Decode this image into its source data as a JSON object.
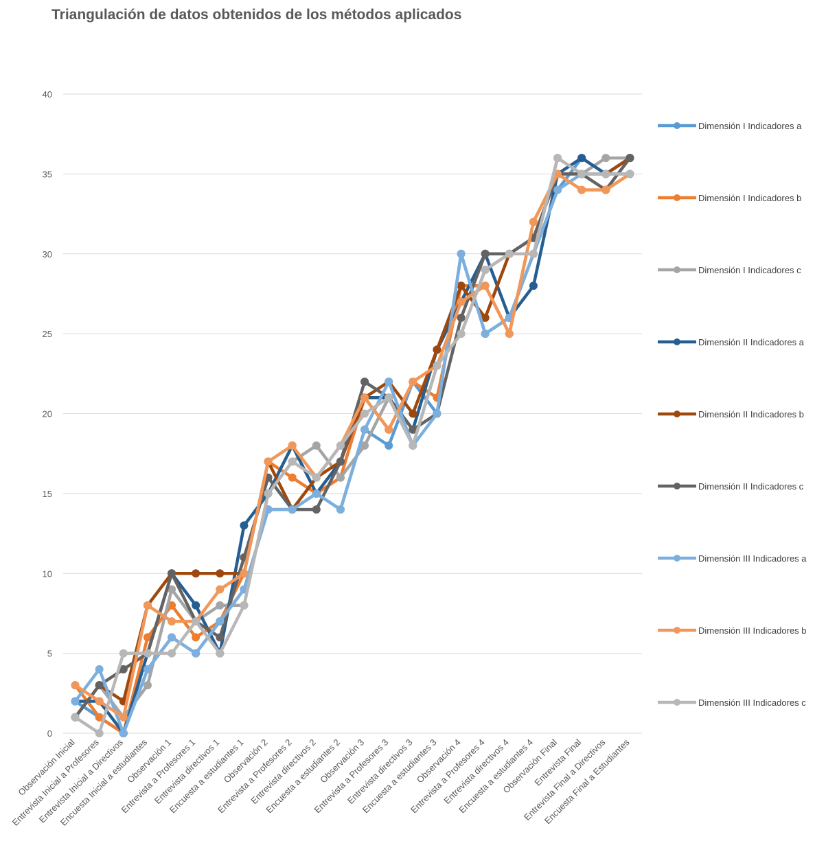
{
  "chart_data": {
    "type": "line",
    "title": "Triangulación de datos obtenidos de los métodos aplicados",
    "categories": [
      "Observación Inicial",
      "Entrevista Inicial a Profesores",
      "Entrevista Inicial a Directivos",
      "Encuesta Inicial a estudiantes",
      "Observación 1",
      "Entrevista a Profesores 1",
      "Entrevista directivos 1",
      "Encuesta a estudiantes 1",
      "Observación 2",
      "Entrevista a Profesores 2",
      "Entrevista directivos 2",
      "Encuesta a estudiantes 2",
      "Observación 3",
      "Entrevista a Profesores 3",
      "Entrevista directivos 3",
      "Encuesta a estudiantes 3",
      "Observación 4",
      "Entrevista a Profesores 4",
      "Entrevista directivos 4",
      "Encuesta a estudiantes 4",
      "Observación Final",
      "Entrevista Final",
      "Entrevista Final a Directivos",
      "Encuesta Final a Estudiantes"
    ],
    "series": [
      {
        "name": "Dimensión I Indicadores a",
        "color": "#5b9bd5",
        "values": [
          2,
          1,
          0,
          4,
          6,
          5,
          7,
          9,
          14,
          14,
          15,
          14,
          19,
          18,
          22,
          20,
          30,
          25,
          26,
          30,
          34,
          36,
          35,
          35
        ]
      },
      {
        "name": "Dimensión I Indicadores b",
        "color": "#ed7d31",
        "values": [
          3,
          1,
          0,
          6,
          8,
          6,
          7,
          10,
          17,
          16,
          15,
          16,
          21,
          19,
          22,
          21,
          28,
          28,
          25,
          32,
          35,
          34,
          34,
          35
        ]
      },
      {
        "name": "Dimensión I Indicadores c",
        "color": "#a5a5a5",
        "values": [
          1,
          3,
          1,
          3,
          9,
          7,
          8,
          8,
          15,
          17,
          18,
          16,
          18,
          21,
          18,
          23,
          25,
          29,
          30,
          30,
          36,
          35,
          36,
          36
        ]
      },
      {
        "name": "Dimensión II Indicadores a",
        "color": "#255e91",
        "values": [
          2,
          2,
          0,
          5,
          10,
          8,
          5,
          13,
          15,
          18,
          15,
          17,
          21,
          21,
          19,
          24,
          27,
          30,
          26,
          28,
          35,
          36,
          35,
          36
        ]
      },
      {
        "name": "Dimensión II Indicadores b",
        "color": "#9e480e",
        "values": [
          1,
          3,
          2,
          8,
          10,
          10,
          10,
          10,
          17,
          14,
          16,
          17,
          21,
          22,
          20,
          24,
          28,
          26,
          30,
          31,
          35,
          35,
          35,
          36
        ]
      },
      {
        "name": "Dimensión II Indicadores c",
        "color": "#636363",
        "values": [
          1,
          3,
          4,
          5,
          10,
          7,
          6,
          11,
          16,
          14,
          14,
          17,
          22,
          21,
          19,
          20,
          26,
          30,
          30,
          31,
          35,
          35,
          34,
          36
        ]
      },
      {
        "name": "Dimensión III Indicadores a",
        "color": "#7cafdd",
        "values": [
          2,
          4,
          0,
          4,
          6,
          5,
          7,
          9,
          14,
          14,
          15,
          14,
          19,
          22,
          18,
          20,
          30,
          25,
          26,
          30,
          34,
          35,
          35,
          35
        ]
      },
      {
        "name": "Dimensión III Indicadores b",
        "color": "#f1975a",
        "values": [
          3,
          2,
          1,
          8,
          7,
          7,
          9,
          10,
          17,
          18,
          16,
          18,
          21,
          19,
          22,
          23,
          27,
          28,
          25,
          32,
          35,
          34,
          34,
          35
        ]
      },
      {
        "name": "Dimensión III Indicadores c",
        "color": "#b7b7b7",
        "values": [
          1,
          0,
          5,
          5,
          5,
          7,
          5,
          8,
          15,
          17,
          16,
          18,
          20,
          21,
          18,
          23,
          25,
          29,
          30,
          30,
          36,
          35,
          35,
          35
        ]
      }
    ],
    "ylim": [
      0,
      40
    ],
    "yticks": [
      0,
      5,
      10,
      15,
      20,
      25,
      30,
      35,
      40
    ],
    "grid": true,
    "legend": "right"
  }
}
